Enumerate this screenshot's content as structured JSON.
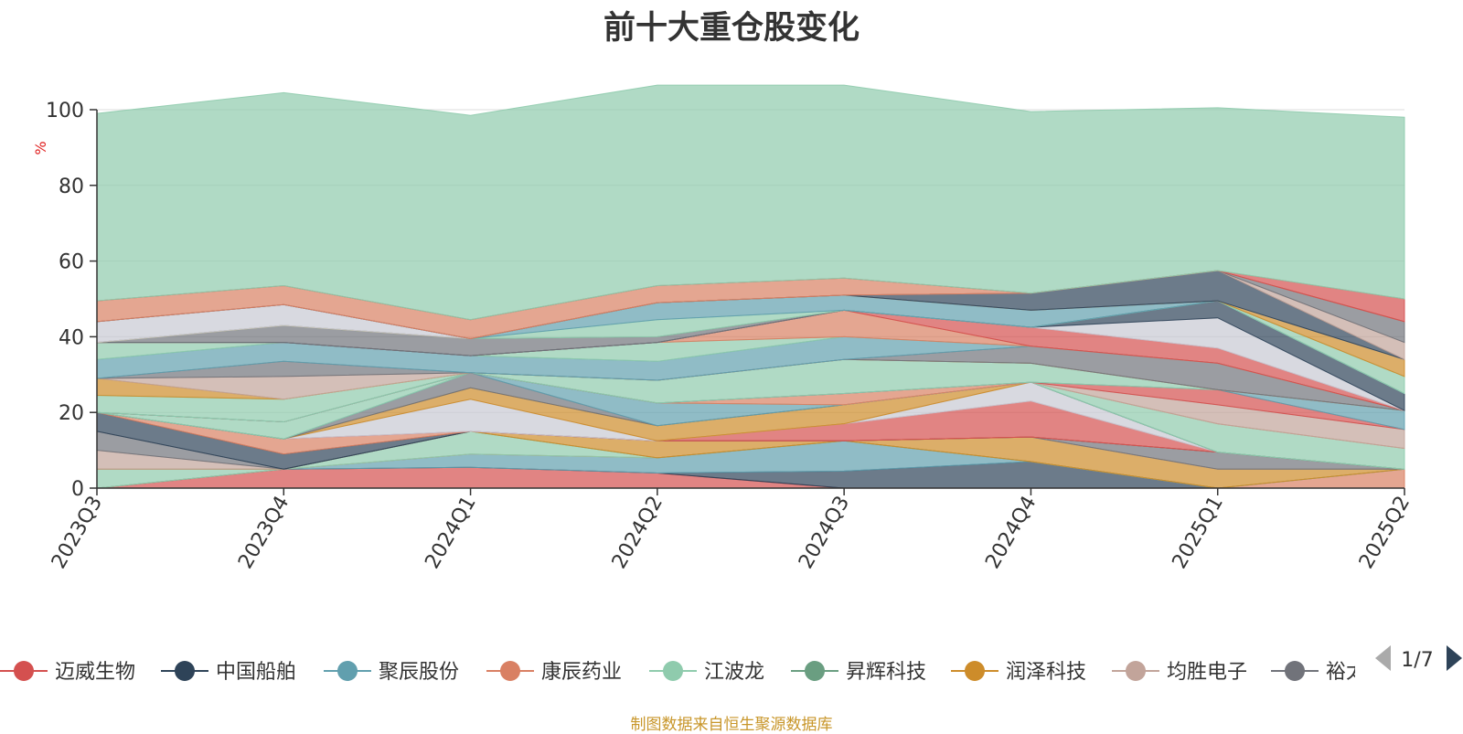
{
  "chart_data": {
    "type": "area",
    "title": "前十大重仓股变化",
    "ylabel": "%",
    "ylim": [
      0,
      100
    ],
    "yticks": [
      "0",
      "20",
      "40",
      "60",
      "80",
      "100"
    ],
    "categories": [
      "2023Q3",
      "2023Q4",
      "2024Q1",
      "2024Q2",
      "2024Q3",
      "2024Q4",
      "2025Q1",
      "2025Q2"
    ],
    "series": [
      {
        "name": "迈威生物",
        "color": "#d4504f",
        "values": [
          0,
          5,
          5.5,
          4,
          0,
          0,
          0,
          0
        ]
      },
      {
        "name": "中国船舶",
        "color": "#2e4358",
        "values": [
          0,
          0,
          0,
          0,
          4.5,
          7,
          0,
          0
        ]
      },
      {
        "name": "聚辰股份",
        "color": "#619fae",
        "values": [
          0,
          0,
          3.5,
          4,
          8,
          0,
          0,
          0
        ]
      },
      {
        "name": "康辰药业",
        "color": "#d98063",
        "values": [
          0,
          0,
          0,
          0,
          0,
          0,
          0,
          5
        ]
      },
      {
        "name": "江波龙",
        "color": "#8fcbad",
        "values": [
          5,
          0,
          6,
          0,
          0,
          0,
          0,
          0
        ]
      },
      {
        "name": "昇辉科技",
        "color": "#6a9e81",
        "values": [
          0,
          0,
          0,
          0,
          0,
          0,
          0,
          0
        ]
      },
      {
        "name": "润泽科技",
        "color": "#cd8c2a",
        "values": [
          0,
          0,
          0,
          4.5,
          0,
          6.5,
          5,
          0
        ]
      },
      {
        "name": "均胜电子",
        "color": "#c2a49a",
        "values": [
          5,
          0,
          0,
          0,
          0,
          0,
          0,
          0
        ]
      },
      {
        "name": "裕太微",
        "color": "#71737a",
        "values": [
          5,
          0,
          0,
          0,
          0,
          0,
          4.5,
          0
        ]
      },
      {
        "name": "",
        "color": "#2e4358",
        "values": [
          5,
          4,
          0,
          0,
          0,
          0,
          0,
          0
        ]
      },
      {
        "name": "",
        "color": "#d98063",
        "values": [
          0,
          4,
          0,
          0,
          0,
          0,
          0,
          0
        ]
      },
      {
        "name": "",
        "color": "#d4504f",
        "values": [
          0,
          0,
          0,
          0,
          4.5,
          9.5,
          0,
          0
        ]
      },
      {
        "name": "",
        "color": "#c8c9d3",
        "values": [
          0,
          0,
          8.5,
          0,
          0,
          5,
          0,
          0
        ]
      },
      {
        "name": "",
        "color": "#cd8c2a",
        "values": [
          0,
          0,
          3,
          4,
          5,
          0,
          0,
          0
        ]
      },
      {
        "name": "",
        "color": "#71737a",
        "values": [
          0,
          0,
          4,
          0,
          0,
          0,
          0,
          0
        ]
      },
      {
        "name": "",
        "color": "#619fae",
        "values": [
          0,
          0,
          0,
          6,
          0,
          0,
          0,
          0
        ]
      },
      {
        "name": "",
        "color": "#8fcbad",
        "values": [
          0,
          4.5,
          0,
          0,
          0,
          0,
          7.5,
          5.5
        ]
      },
      {
        "name": "",
        "color": "#d98063",
        "values": [
          0,
          0,
          0,
          0,
          3,
          0,
          0,
          0
        ]
      },
      {
        "name": "",
        "color": "#c2a49a",
        "values": [
          0,
          0,
          0,
          0,
          0,
          0,
          5,
          5
        ]
      },
      {
        "name": "",
        "color": "#d4504f",
        "values": [
          0,
          0,
          0,
          0,
          0,
          0,
          4,
          0
        ]
      },
      {
        "name": "",
        "color": "#619fae",
        "values": [
          0,
          0,
          0,
          0,
          0,
          0,
          0,
          5
        ]
      },
      {
        "name": "",
        "color": "#8fcbad",
        "values": [
          4.5,
          6,
          0,
          6,
          9,
          5,
          0,
          0
        ]
      },
      {
        "name": "",
        "color": "#cd8c2a",
        "values": [
          4.5,
          0,
          0,
          0,
          0,
          0,
          0,
          0
        ]
      },
      {
        "name": "",
        "color": "#c2a49a",
        "values": [
          0,
          6,
          0,
          0,
          0,
          0,
          0,
          0
        ]
      },
      {
        "name": "",
        "color": "#71737a",
        "values": [
          0,
          4,
          0,
          0,
          0,
          4.5,
          7,
          0
        ]
      },
      {
        "name": "",
        "color": "#619fae",
        "values": [
          5,
          5,
          4.5,
          5,
          6,
          0,
          0,
          0
        ]
      },
      {
        "name": "",
        "color": "#8fcbad",
        "values": [
          4.5,
          0,
          0,
          5,
          0,
          0,
          0,
          0
        ]
      },
      {
        "name": "",
        "color": "#d98063",
        "values": [
          0,
          0,
          0,
          0,
          7,
          0,
          0,
          0
        ]
      },
      {
        "name": "",
        "color": "#d4504f",
        "values": [
          0,
          0,
          0,
          0,
          0,
          5,
          4,
          0
        ]
      },
      {
        "name": "",
        "color": "#c8c9d3",
        "values": [
          0,
          0,
          0,
          0,
          0,
          0,
          8,
          0
        ]
      },
      {
        "name": "",
        "color": "#2e4358",
        "values": [
          0,
          0,
          0,
          0,
          0,
          0,
          4.5,
          4.5
        ]
      },
      {
        "name": "",
        "color": "#71737a",
        "values": [
          0,
          4.5,
          4.5,
          1.5,
          0,
          0,
          0,
          0
        ]
      },
      {
        "name": "",
        "color": "#8fcbad",
        "values": [
          0,
          0,
          0,
          4.5,
          0,
          0,
          0,
          0
        ]
      },
      {
        "name": "",
        "color": "#619fae",
        "values": [
          0,
          0,
          0,
          4.5,
          4,
          4.5,
          0,
          0
        ]
      },
      {
        "name": "",
        "color": "#8fcbad",
        "values": [
          0,
          0,
          0,
          0,
          0,
          0,
          0,
          4.5
        ]
      },
      {
        "name": "",
        "color": "#cd8c2a",
        "values": [
          0,
          0,
          0,
          0,
          0,
          0,
          0,
          4.5
        ]
      },
      {
        "name": "",
        "color": "#c8c9d3",
        "values": [
          5.5,
          5.5,
          0,
          0,
          0,
          0,
          0,
          0
        ]
      },
      {
        "name": "",
        "color": "#2e4358",
        "values": [
          0,
          0,
          0,
          0,
          0,
          4.5,
          8,
          0
        ]
      },
      {
        "name": "",
        "color": "#c2a49a",
        "values": [
          0,
          0,
          0,
          0,
          0,
          0,
          0,
          4.5
        ]
      },
      {
        "name": "",
        "color": "#71737a",
        "values": [
          0,
          0,
          0,
          0,
          0,
          0,
          0,
          5.5
        ]
      },
      {
        "name": "",
        "color": "#d98063",
        "values": [
          5.5,
          5,
          5,
          4.5,
          4.5,
          0,
          0,
          0
        ]
      },
      {
        "name": "",
        "color": "#d4504f",
        "values": [
          0,
          0,
          0,
          0,
          0,
          0,
          0,
          6
        ]
      },
      {
        "name": "",
        "color": "#8fcbad",
        "values": [
          49.5,
          51,
          54,
          53,
          51,
          48,
          43,
          48
        ]
      }
    ]
  },
  "legend": {
    "items": [
      {
        "label": "迈威生物",
        "color": "#d4504f"
      },
      {
        "label": "中国船舶",
        "color": "#2e4358"
      },
      {
        "label": "聚辰股份",
        "color": "#619fae"
      },
      {
        "label": "康辰药业",
        "color": "#d98063"
      },
      {
        "label": "江波龙",
        "color": "#8fcbad"
      },
      {
        "label": "昇辉科技",
        "color": "#6a9e81"
      },
      {
        "label": "润泽科技",
        "color": "#cd8c2a"
      },
      {
        "label": "均胜电子",
        "color": "#c2a49a"
      },
      {
        "label": "裕太微",
        "color": "#71737a"
      }
    ],
    "page": "1/7"
  },
  "footer": "制图数据来自恒生聚源数据库"
}
